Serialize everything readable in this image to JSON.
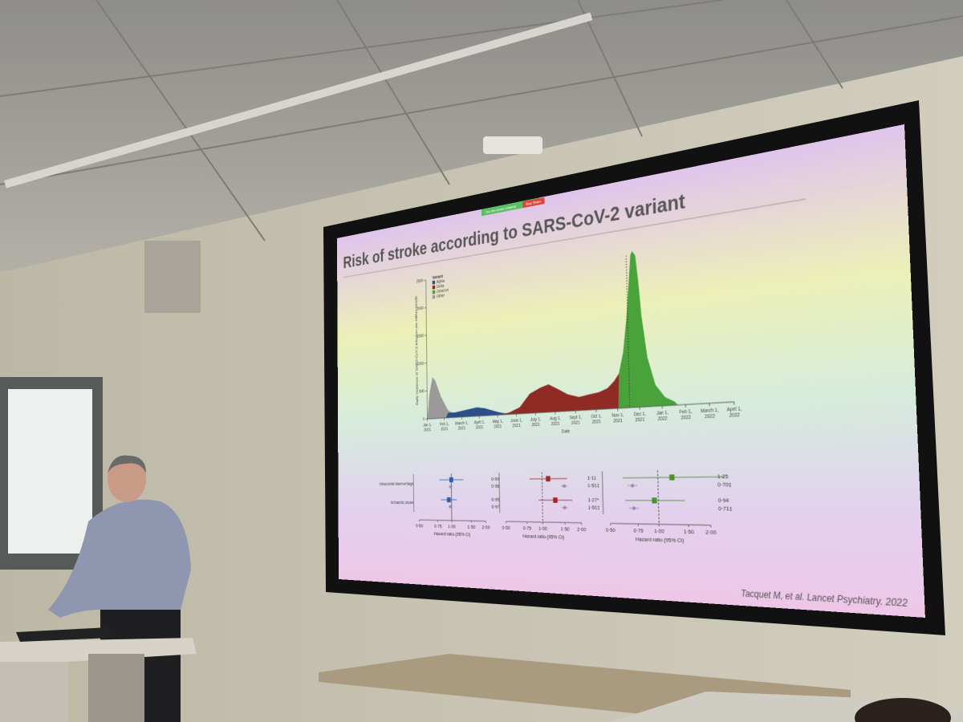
{
  "screen_share": {
    "status": "You are screen sharing",
    "stop": "Stop Share"
  },
  "slide": {
    "title": "Risk of stroke according to SARS-CoV-2 variant",
    "citation": "Tacquet M, et al. Lancet Psychiatry. 2022",
    "chart": {
      "legend_title": "Variant",
      "legend": [
        "Alpha",
        "Delta",
        "Omicron",
        "Other"
      ],
      "y_label": "Daily incidence of SARS-CoV-2 infection per million people",
      "y_ticks": [
        "2500",
        "2000",
        "1500",
        "1000",
        "500",
        "0"
      ],
      "x_label": "Date",
      "x_ticks": [
        [
          "Jan 1,",
          "2021"
        ],
        [
          "Feb 1,",
          "2021"
        ],
        [
          "March 1,",
          "2021"
        ],
        [
          "April 1,",
          "2021"
        ],
        [
          "May 1,",
          "2021"
        ],
        [
          "June 1,",
          "2021"
        ],
        [
          "July 1,",
          "2021"
        ],
        [
          "Aug 1,",
          "2021"
        ],
        [
          "Sept 1,",
          "2021"
        ],
        [
          "Oct 1,",
          "2021"
        ],
        [
          "Nov 1,",
          "2021"
        ],
        [
          "Dec 1,",
          "2021"
        ],
        [
          "Jan 1,",
          "2022"
        ],
        [
          "Feb 1,",
          "2022"
        ],
        [
          "March 1,",
          "2022"
        ],
        [
          "April 1,",
          "2022"
        ]
      ]
    },
    "forest": {
      "rows": [
        "Intracranial haemorrhage",
        "Ischaemic stroke"
      ],
      "axis_label": "Hazard ratio (95% CI)",
      "axis_ticks": [
        "0·50",
        "0·75",
        "1·00",
        "1·50",
        "2·00"
      ],
      "panels": [
        [
          "0·99",
          "0·98",
          "0·95",
          "0·97"
        ],
        [
          "1·11",
          "1·51‡",
          "1·27*",
          "1·51‡"
        ],
        [
          "1·25",
          "0·70‡",
          "0·94",
          "0·71‡"
        ]
      ]
    }
  }
}
